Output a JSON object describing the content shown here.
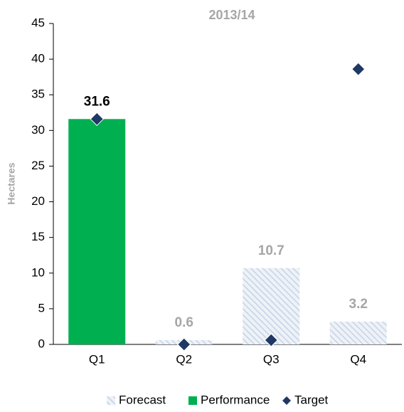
{
  "chart_data": {
    "type": "bar",
    "title": "2013/14",
    "y_label": "Hectares",
    "categories": [
      "Q1",
      "Q2",
      "Q3",
      "Q4"
    ],
    "series": [
      {
        "name": "Forecast",
        "type": "bar",
        "hatch": true,
        "color": "#c5d3e4",
        "label_color": "#a6a6a6",
        "values": [
          null,
          0.6,
          10.7,
          3.2
        ]
      },
      {
        "name": "Performance",
        "type": "bar",
        "color": "#00b050",
        "label_color": "#000000",
        "values": [
          31.6,
          null,
          null,
          null
        ]
      },
      {
        "name": "Target",
        "type": "scatter",
        "color": "#1f3864",
        "values": [
          31.6,
          0,
          0.6,
          38.6
        ]
      }
    ],
    "ylim": [
      0,
      45
    ],
    "yticks": [
      0,
      5,
      10,
      15,
      20,
      25,
      30,
      35,
      40,
      45
    ],
    "grid": false
  }
}
